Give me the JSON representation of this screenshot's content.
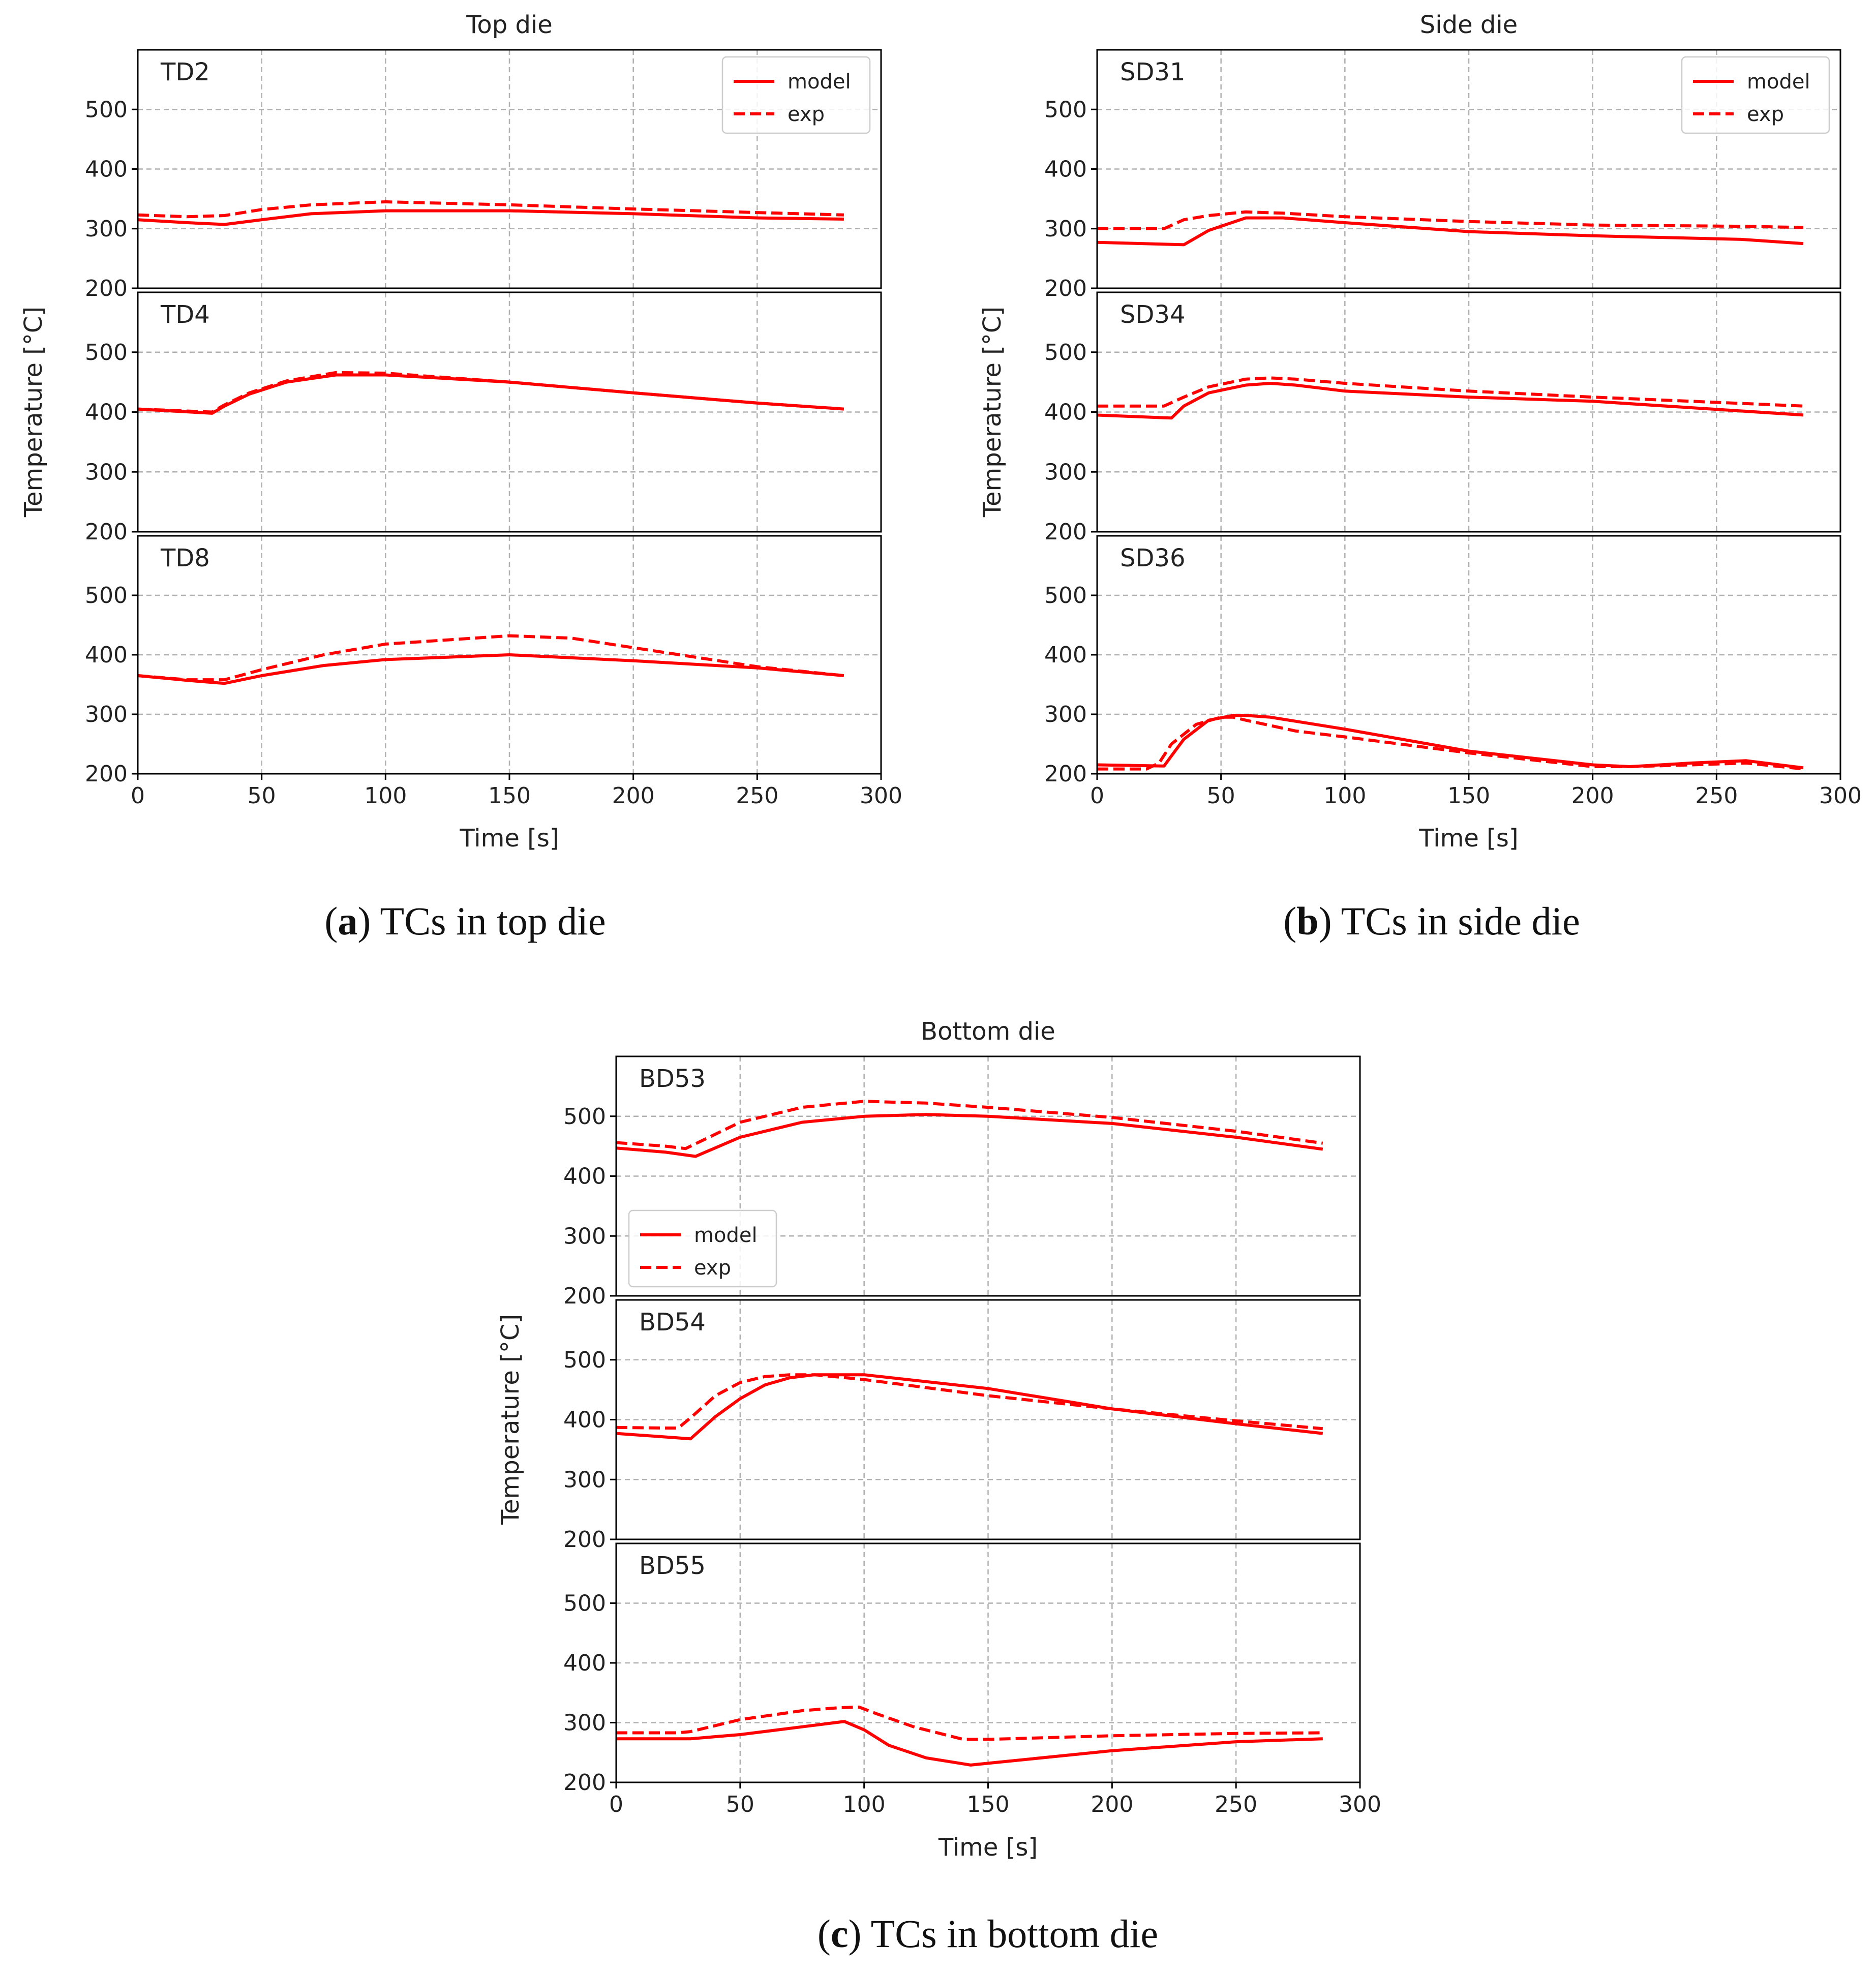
{
  "colors": {
    "series": "#ff0000",
    "grid": "#b0b0b0",
    "axis": "#000000"
  },
  "legend_labels": {
    "model": "model",
    "exp": "exp"
  },
  "axis_text": {
    "xlabel": "Time [s]",
    "ylabel": "Temperature [°C]"
  },
  "chart_data": [
    {
      "type": "line",
      "title": "Top die",
      "caption": {
        "letter": "a",
        "text": " TCs in top die"
      },
      "xlabel": "Time [s]",
      "ylabel": "Temperature [°C]",
      "xlim": [
        0,
        300
      ],
      "xticks": [
        0,
        50,
        100,
        150,
        200,
        250,
        300
      ],
      "ylim": [
        200,
        600
      ],
      "yticks": [
        200,
        300,
        400,
        500
      ],
      "legend_panel": 0,
      "legend_position": "top-right",
      "panels": [
        {
          "label": "TD2",
          "series": [
            {
              "name": "model",
              "style": "solid",
              "x": [
                0,
                20,
                35,
                50,
                70,
                100,
                150,
                200,
                250,
                285
              ],
              "y": [
                315,
                310,
                307,
                315,
                325,
                330,
                330,
                325,
                318,
                316
              ]
            },
            {
              "name": "exp",
              "style": "dashed",
              "x": [
                0,
                20,
                35,
                50,
                70,
                100,
                150,
                200,
                250,
                285
              ],
              "y": [
                323,
                320,
                322,
                332,
                340,
                345,
                340,
                333,
                327,
                323
              ]
            }
          ]
        },
        {
          "label": "TD4",
          "series": [
            {
              "name": "model",
              "style": "solid",
              "x": [
                0,
                30,
                35,
                45,
                60,
                80,
                100,
                150,
                200,
                250,
                285
              ],
              "y": [
                405,
                398,
                410,
                430,
                450,
                462,
                462,
                450,
                432,
                415,
                405
              ]
            },
            {
              "name": "exp",
              "style": "dashed",
              "x": [
                0,
                30,
                35,
                45,
                60,
                80,
                100,
                150,
                200,
                250,
                285
              ],
              "y": [
                405,
                400,
                412,
                432,
                452,
                466,
                465,
                450,
                432,
                415,
                405
              ]
            }
          ]
        },
        {
          "label": "TD8",
          "series": [
            {
              "name": "model",
              "style": "solid",
              "x": [
                0,
                20,
                35,
                50,
                75,
                100,
                150,
                200,
                250,
                285
              ],
              "y": [
                365,
                357,
                352,
                365,
                382,
                392,
                400,
                390,
                378,
                365
              ]
            },
            {
              "name": "exp",
              "style": "dashed",
              "x": [
                0,
                20,
                35,
                50,
                75,
                100,
                150,
                175,
                200,
                250,
                285
              ],
              "y": [
                365,
                358,
                358,
                375,
                400,
                418,
                432,
                428,
                412,
                380,
                365
              ]
            }
          ]
        }
      ]
    },
    {
      "type": "line",
      "title": "Side die",
      "caption": {
        "letter": "b",
        "text": " TCs in side die"
      },
      "xlabel": "Time [s]",
      "ylabel": "Temperature [°C]",
      "xlim": [
        0,
        300
      ],
      "xticks": [
        0,
        50,
        100,
        150,
        200,
        250,
        300
      ],
      "ylim": [
        200,
        600
      ],
      "yticks": [
        200,
        300,
        400,
        500
      ],
      "legend_panel": 0,
      "legend_position": "top-right",
      "panels": [
        {
          "label": "SD31",
          "series": [
            {
              "name": "model",
              "style": "solid",
              "x": [
                0,
                35,
                45,
                60,
                75,
                100,
                150,
                200,
                260,
                285
              ],
              "y": [
                277,
                273,
                297,
                318,
                318,
                310,
                295,
                288,
                282,
                275
              ]
            },
            {
              "name": "exp",
              "style": "dashed",
              "x": [
                0,
                27,
                35,
                45,
                60,
                75,
                100,
                150,
                200,
                260,
                285
              ],
              "y": [
                300,
                300,
                315,
                322,
                328,
                326,
                320,
                312,
                306,
                304,
                302
              ]
            }
          ]
        },
        {
          "label": "SD34",
          "series": [
            {
              "name": "model",
              "style": "solid",
              "x": [
                0,
                30,
                35,
                45,
                60,
                70,
                80,
                100,
                150,
                200,
                285
              ],
              "y": [
                395,
                390,
                410,
                432,
                445,
                448,
                445,
                435,
                425,
                418,
                395
              ]
            },
            {
              "name": "exp",
              "style": "dashed",
              "x": [
                0,
                27,
                35,
                45,
                60,
                70,
                80,
                100,
                150,
                200,
                285
              ],
              "y": [
                410,
                410,
                425,
                442,
                455,
                457,
                455,
                448,
                435,
                425,
                410
              ]
            }
          ]
        },
        {
          "label": "SD36",
          "series": [
            {
              "name": "model",
              "style": "solid",
              "x": [
                0,
                27,
                30,
                35,
                45,
                55,
                60,
                70,
                100,
                150,
                200,
                215,
                240,
                262,
                285
              ],
              "y": [
                215,
                213,
                230,
                258,
                290,
                298,
                298,
                295,
                275,
                238,
                215,
                212,
                218,
                222,
                210
              ]
            },
            {
              "name": "exp",
              "style": "dashed",
              "x": [
                0,
                20,
                25,
                30,
                40,
                50,
                55,
                60,
                80,
                100,
                150,
                200,
                215,
                240,
                262,
                285
              ],
              "y": [
                208,
                208,
                218,
                250,
                283,
                295,
                295,
                290,
                272,
                262,
                235,
                212,
                212,
                215,
                218,
                208
              ]
            }
          ]
        }
      ]
    },
    {
      "type": "line",
      "title": "Bottom die",
      "caption": {
        "letter": "c",
        "text": " TCs in bottom die"
      },
      "xlabel": "Time [s]",
      "ylabel": "Temperature [°C]",
      "xlim": [
        0,
        300
      ],
      "xticks": [
        0,
        50,
        100,
        150,
        200,
        250,
        300
      ],
      "ylim": [
        200,
        600
      ],
      "yticks": [
        200,
        300,
        400,
        500
      ],
      "legend_panel": 0,
      "legend_position": "bottom-left",
      "panels": [
        {
          "label": "BD53",
          "series": [
            {
              "name": "model",
              "style": "solid",
              "x": [
                0,
                20,
                32,
                50,
                75,
                100,
                125,
                150,
                200,
                250,
                285
              ],
              "y": [
                447,
                440,
                433,
                465,
                490,
                500,
                503,
                500,
                488,
                465,
                445
              ]
            },
            {
              "name": "exp",
              "style": "dashed",
              "x": [
                0,
                20,
                28,
                50,
                75,
                100,
                125,
                150,
                200,
                250,
                285
              ],
              "y": [
                456,
                450,
                446,
                490,
                515,
                525,
                522,
                515,
                498,
                475,
                455
              ]
            }
          ]
        },
        {
          "label": "BD54",
          "series": [
            {
              "name": "model",
              "style": "solid",
              "x": [
                0,
                20,
                30,
                40,
                50,
                60,
                70,
                80,
                100,
                150,
                200,
                250,
                285
              ],
              "y": [
                377,
                371,
                368,
                405,
                435,
                458,
                470,
                475,
                475,
                452,
                418,
                393,
                377
              ]
            },
            {
              "name": "exp",
              "style": "dashed",
              "x": [
                0,
                20,
                25,
                30,
                40,
                50,
                60,
                70,
                80,
                100,
                150,
                200,
                250,
                285
              ],
              "y": [
                387,
                386,
                386,
                403,
                440,
                462,
                472,
                475,
                475,
                467,
                440,
                418,
                398,
                385
              ]
            }
          ]
        },
        {
          "label": "BD55",
          "series": [
            {
              "name": "model",
              "style": "solid",
              "x": [
                0,
                30,
                50,
                75,
                92,
                100,
                110,
                125,
                143,
                150,
                200,
                250,
                285
              ],
              "y": [
                273,
                273,
                280,
                293,
                302,
                288,
                262,
                241,
                229,
                232,
                253,
                268,
                273
              ]
            },
            {
              "name": "exp",
              "style": "dashed",
              "x": [
                0,
                25,
                30,
                50,
                75,
                90,
                98,
                105,
                120,
                140,
                150,
                200,
                250,
                285
              ],
              "y": [
                283,
                283,
                285,
                305,
                320,
                325,
                326,
                315,
                293,
                272,
                272,
                278,
                282,
                283
              ]
            }
          ]
        }
      ]
    }
  ]
}
